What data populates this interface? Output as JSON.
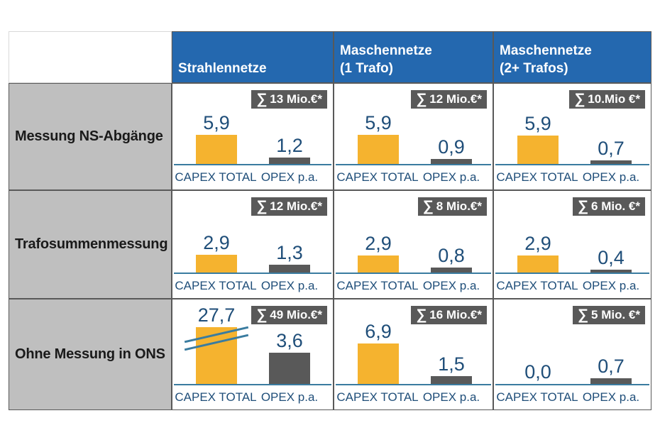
{
  "labels": {
    "sigma": "∑",
    "capex": "CAPEX TOTAL",
    "opex": "OPEX p.a."
  },
  "header": {
    "col1": {
      "line1": "Strahlennetze"
    },
    "col2": {
      "line1": "Maschennetze",
      "line2": "(1 Trafo)"
    },
    "col3": {
      "line1": "Maschennetze",
      "line2": "(2+ Trafos)"
    }
  },
  "rows": [
    {
      "label": "Messung NS-Abgänge",
      "cells": [
        {
          "sum": "13 Mio.€*",
          "capex": "5,9",
          "opex": "1,2",
          "capex_h": 41,
          "opex_h": 9
        },
        {
          "sum": "12 Mio.€*",
          "capex": "5,9",
          "opex": "0,9",
          "capex_h": 41,
          "opex_h": 7
        },
        {
          "sum": "10.Mio €*",
          "capex": "5,9",
          "opex": "0,7",
          "capex_h": 40,
          "opex_h": 5
        }
      ]
    },
    {
      "label": "Trafosummenmessung",
      "cells": [
        {
          "sum": "12 Mio.€*",
          "capex": "2,9",
          "opex": "1,3",
          "capex_h": 25,
          "opex_h": 11
        },
        {
          "sum": "8 Mio.€*",
          "capex": "2,9",
          "opex": "0,8",
          "capex_h": 24,
          "opex_h": 7
        },
        {
          "sum": "6 Mio. €*",
          "capex": "2,9",
          "opex": "0,4",
          "capex_h": 24,
          "opex_h": 4
        }
      ]
    },
    {
      "label": "Ohne Messung in ONS",
      "cells": [
        {
          "sum": "49 Mio.€*",
          "capex": "27,7",
          "opex": "3,6",
          "capex_h": 80,
          "opex_h": 44,
          "broken": true
        },
        {
          "sum": "16 Mio.€*",
          "capex": "6,9",
          "opex": "1,5",
          "capex_h": 57,
          "opex_h": 11
        },
        {
          "sum": "5 Mio. €*",
          "capex": "0,0",
          "opex": "0,7",
          "capex_h": 0,
          "opex_h": 8
        }
      ]
    }
  ],
  "colors": {
    "header_bg": "#2468AF",
    "header_text": "#FFFFFF",
    "row_label_bg": "#BFBFBF",
    "capex_bar": "#F5B32F",
    "opex_bar": "#595959",
    "badge_bg": "#595959",
    "badge_text": "#FFFFFF",
    "value_text": "#1F4E79",
    "axis_line": "#3A7CA0",
    "grid_border": "#595959"
  },
  "chart_data": [
    {
      "type": "bar",
      "row": "Messung NS-Abgänge",
      "column": "Strahlennetze",
      "categories": [
        "CAPEX TOTAL",
        "OPEX p.a."
      ],
      "values": [
        5.9,
        1.2
      ],
      "total_label": "∑ 13 Mio.€*",
      "total": 13,
      "unit": "Mio. €"
    },
    {
      "type": "bar",
      "row": "Messung NS-Abgänge",
      "column": "Maschennetze (1 Trafo)",
      "categories": [
        "CAPEX TOTAL",
        "OPEX p.a."
      ],
      "values": [
        5.9,
        0.9
      ],
      "total_label": "∑ 12 Mio.€*",
      "total": 12,
      "unit": "Mio. €"
    },
    {
      "type": "bar",
      "row": "Messung NS-Abgänge",
      "column": "Maschennetze (2+ Trafos)",
      "categories": [
        "CAPEX TOTAL",
        "OPEX p.a."
      ],
      "values": [
        5.9,
        0.7
      ],
      "total_label": "∑ 10.Mio €*",
      "total": 10,
      "unit": "Mio. €"
    },
    {
      "type": "bar",
      "row": "Trafosummenmessung",
      "column": "Strahlennetze",
      "categories": [
        "CAPEX TOTAL",
        "OPEX p.a."
      ],
      "values": [
        2.9,
        1.3
      ],
      "total_label": "∑ 12 Mio.€*",
      "total": 12,
      "unit": "Mio. €"
    },
    {
      "type": "bar",
      "row": "Trafosummenmessung",
      "column": "Maschennetze (1 Trafo)",
      "categories": [
        "CAPEX TOTAL",
        "OPEX p.a."
      ],
      "values": [
        2.9,
        0.8
      ],
      "total_label": "∑ 8 Mio.€*",
      "total": 8,
      "unit": "Mio. €"
    },
    {
      "type": "bar",
      "row": "Trafosummenmessung",
      "column": "Maschennetze (2+ Trafos)",
      "categories": [
        "CAPEX TOTAL",
        "OPEX p.a."
      ],
      "values": [
        2.9,
        0.4
      ],
      "total_label": "∑ 6 Mio. €*",
      "total": 6,
      "unit": "Mio. €"
    },
    {
      "type": "bar",
      "row": "Ohne Messung in ONS",
      "column": "Strahlennetze",
      "categories": [
        "CAPEX TOTAL",
        "OPEX p.a."
      ],
      "values": [
        27.7,
        3.6
      ],
      "total_label": "∑ 49 Mio.€*",
      "total": 49,
      "unit": "Mio. €",
      "axis_break_on_capex": true
    },
    {
      "type": "bar",
      "row": "Ohne Messung in ONS",
      "column": "Maschennetze (1 Trafo)",
      "categories": [
        "CAPEX TOTAL",
        "OPEX p.a."
      ],
      "values": [
        6.9,
        1.5
      ],
      "total_label": "∑ 16 Mio.€*",
      "total": 16,
      "unit": "Mio. €"
    },
    {
      "type": "bar",
      "row": "Ohne Messung in ONS",
      "column": "Maschennetze (2+ Trafos)",
      "categories": [
        "CAPEX TOTAL",
        "OPEX p.a."
      ],
      "values": [
        0.0,
        0.7
      ],
      "total_label": "∑ 5 Mio. €*",
      "total": 5,
      "unit": "Mio. €"
    }
  ]
}
